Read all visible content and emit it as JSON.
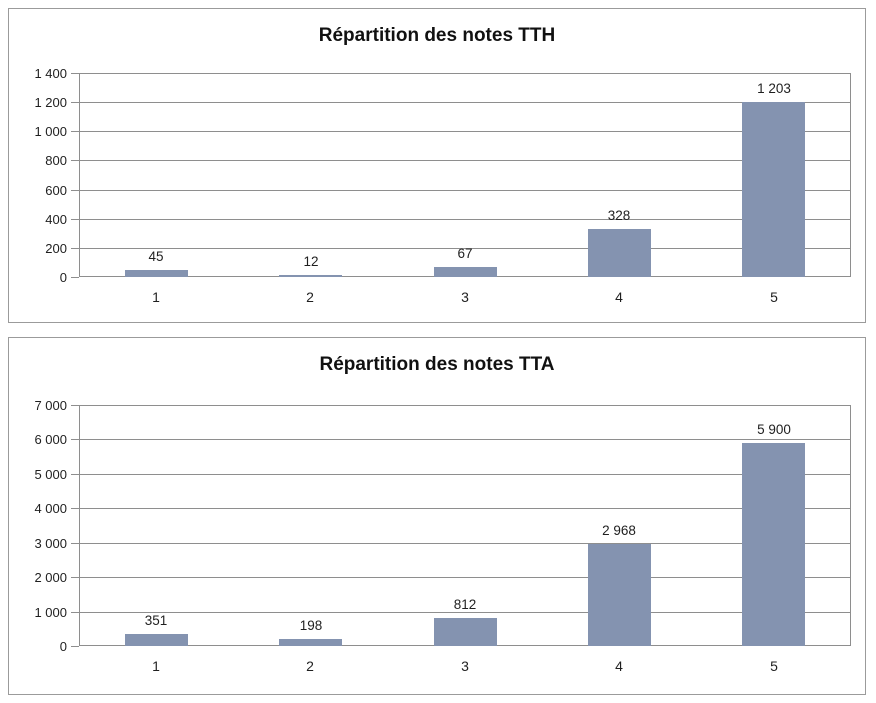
{
  "style": {
    "background": "#FFFFFF",
    "panel_border": "#9B9B9B",
    "grid_color": "#8E8E8E",
    "text_color": "#1F1F1F",
    "bar_color": "#8493B0"
  },
  "chart_data": [
    {
      "type": "bar",
      "title": "Répartition des notes TTH",
      "categories": [
        "1",
        "2",
        "3",
        "4",
        "5"
      ],
      "values": [
        45,
        12,
        67,
        328,
        1203
      ],
      "value_labels": [
        "45",
        "12",
        "67",
        "328",
        "1 203"
      ],
      "ylim": [
        0,
        1400
      ],
      "ytick_interval": 200,
      "ytick_labels": [
        "0",
        "200",
        "400",
        "600",
        "800",
        "1 000",
        "1 200",
        "1 400"
      ],
      "xlabel": "",
      "ylabel": "",
      "grid": true,
      "legend": "none",
      "bar_color": "#8493B0"
    },
    {
      "type": "bar",
      "title": "Répartition des notes TTA",
      "categories": [
        "1",
        "2",
        "3",
        "4",
        "5"
      ],
      "values": [
        351,
        198,
        812,
        2968,
        5900
      ],
      "value_labels": [
        "351",
        "198",
        "812",
        "2 968",
        "5 900"
      ],
      "ylim": [
        0,
        7000
      ],
      "ytick_interval": 1000,
      "ytick_labels": [
        "0",
        "1 000",
        "2 000",
        "3 000",
        "4 000",
        "5 000",
        "6 000",
        "7 000"
      ],
      "xlabel": "",
      "ylabel": "",
      "grid": true,
      "legend": "none",
      "bar_color": "#8493B0"
    }
  ]
}
